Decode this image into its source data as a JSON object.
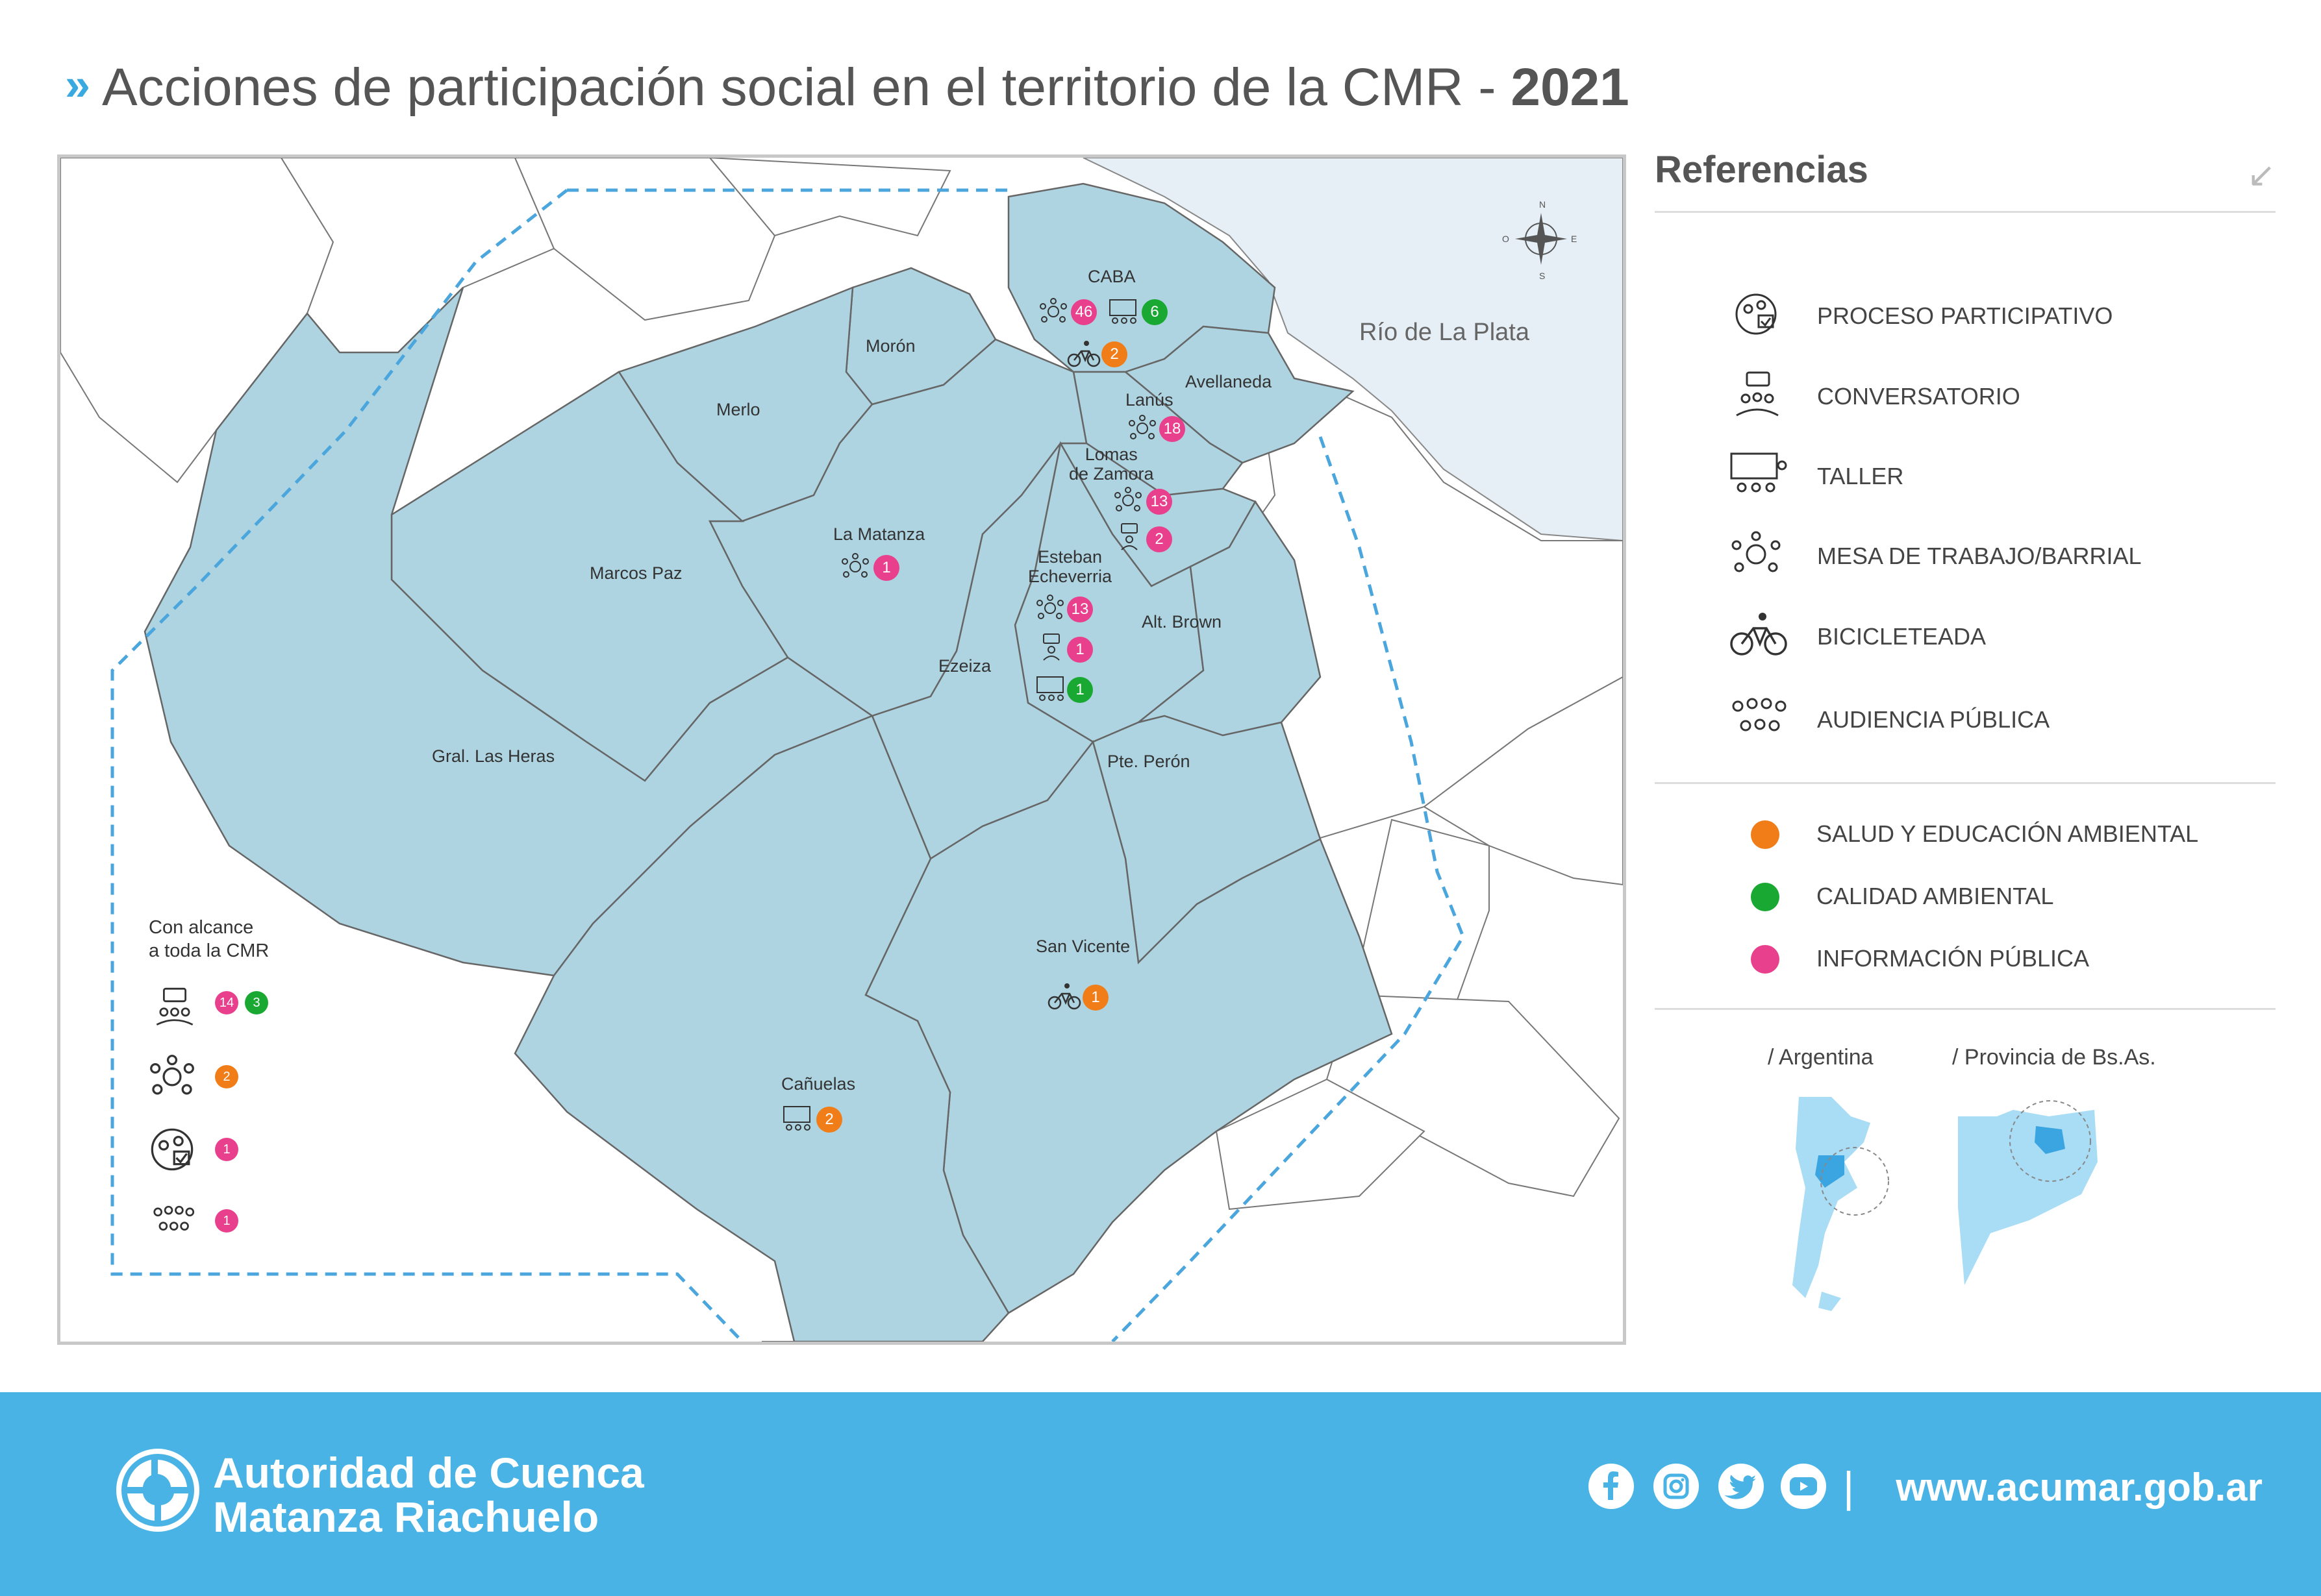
{
  "title": {
    "main": "Acciones de participación social en el territorio de la CMR - ",
    "year": "2021"
  },
  "map": {
    "water_label": "Río de La Plata",
    "compass": {
      "n": "N",
      "s": "S",
      "e": "E",
      "o": "O"
    },
    "municipalities": [
      "CABA",
      "Morón",
      "Merlo",
      "Avellaneda",
      "Lanús",
      "Lomas de Zamora",
      "La Matanza",
      "Marcos Paz",
      "Esteban Echeverría",
      "Alt. Brown",
      "Ezeiza",
      "Gral. Las Heras",
      "Pte. Perón",
      "San Vicente",
      "Cañuelas"
    ],
    "labels": {
      "caba": "CABA",
      "moron": "Morón",
      "merlo": "Merlo",
      "avellaneda": "Avellaneda",
      "lanus": "Lanús",
      "lomas": "Lomas\nde Zamora",
      "matanza": "La Matanza",
      "marcos_paz": "Marcos Paz",
      "echeverria": "Esteban\nEcheverria",
      "alt_brown": "Alt. Brown",
      "ezeiza": "Ezeiza",
      "las_heras": "Gral. Las Heras",
      "peron": "Pte. Perón",
      "san_vicente": "San Vicente",
      "canuelas": "Cañuelas"
    },
    "badges": {
      "caba_mesa": "46",
      "caba_taller": "6",
      "caba_bici": "2",
      "lanus_mesa": "18",
      "lomas_mesa": "13",
      "lomas_conv": "2",
      "matanza_mesa": "1",
      "eche_mesa": "13",
      "eche_conv": "1",
      "eche_taller": "1",
      "sanvicente_bici": "1",
      "canuelas_taller": "2"
    },
    "alcance": {
      "title": "Con alcance\na toda la CMR",
      "conv_pink": "14",
      "conv_green": "3",
      "mesa_orange": "2",
      "proceso_pink": "1",
      "audiencia_pink": "1"
    }
  },
  "references": {
    "heading": "Referencias",
    "icons": [
      {
        "icon": "proceso-participativo-icon",
        "label": "PROCESO PARTICIPATIVO"
      },
      {
        "icon": "conversatorio-icon",
        "label": "CONVERSATORIO"
      },
      {
        "icon": "taller-icon",
        "label": "TALLER"
      },
      {
        "icon": "mesa-trabajo-icon",
        "label": "MESA DE TRABAJO/BARRIAL"
      },
      {
        "icon": "bicicleteada-icon",
        "label": "BICICLETEADA"
      },
      {
        "icon": "audiencia-publica-icon",
        "label": "AUDIENCIA PÚBLICA"
      }
    ],
    "categories": [
      {
        "color": "#f07d18",
        "label": "SALUD Y EDUCACIÓN AMBIENTAL"
      },
      {
        "color": "#19a832",
        "label": "CALIDAD AMBIENTAL"
      },
      {
        "color": "#e8408c",
        "label": "INFORMACIÓN PÚBLICA"
      }
    ],
    "locator_argentina": "/ Argentina",
    "locator_provincia": "/ Provincia de Bs.As."
  },
  "footer": {
    "org_line1": "Autoridad de Cuenca",
    "org_line2": "Matanza Riachuelo",
    "separator": "|",
    "url": "www.acumar.gob.ar"
  },
  "colors": {
    "accent": "#39a9e0",
    "footer_bg": "#4ab3e6",
    "region_fill": "#aed4e1",
    "water": "#e6eff5"
  }
}
